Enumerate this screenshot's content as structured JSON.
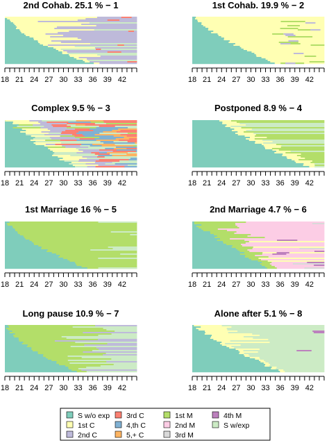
{
  "chart_data": {
    "type": "sequence-index-plot",
    "x_ticks": [
      "18",
      "21",
      "24",
      "27",
      "30",
      "33",
      "36",
      "39",
      "42"
    ],
    "x_range": [
      18,
      45
    ],
    "states": [
      {
        "label": "S w/o exp",
        "color": "#7fcdbb"
      },
      {
        "label": "1st C",
        "color": "#ffffb3"
      },
      {
        "label": "2nd C",
        "color": "#bebada"
      },
      {
        "label": "3rd C",
        "color": "#fb8072"
      },
      {
        "label": "4,th C",
        "color": "#80b1d3"
      },
      {
        "label": "5,+ C",
        "color": "#fdb462"
      },
      {
        "label": "1st M",
        "color": "#b3de69"
      },
      {
        "label": "2nd M",
        "color": "#fccde5"
      },
      {
        "label": "3rd M",
        "color": "#d9d9d9"
      },
      {
        "label": "4th M",
        "color": "#bc80bd"
      },
      {
        "label": "S w/exp",
        "color": "#ccebc5"
      }
    ],
    "panels": [
      {
        "title": "2nd Cohab. 25.1 % −  1",
        "cluster": 1,
        "share_pct": 25.1,
        "dominant_states": [
          "S w/o exp",
          "1st C",
          "2nd C"
        ]
      },
      {
        "title": "1st Cohab. 19.9 % −  2",
        "cluster": 2,
        "share_pct": 19.9,
        "dominant_states": [
          "S w/o exp",
          "1st C"
        ]
      },
      {
        "title": "Complex 9.5 % −  3",
        "cluster": 3,
        "share_pct": 9.5,
        "dominant_states": [
          "S w/o exp",
          "1st C",
          "2nd C",
          "3rd C",
          "4,th C",
          "5,+ C"
        ]
      },
      {
        "title": "Postponed 8.9 % −  4",
        "cluster": 4,
        "share_pct": 8.9,
        "dominant_states": [
          "S w/o exp",
          "1st C",
          "1st M"
        ]
      },
      {
        "title": "1st Marriage 16 % −  5",
        "cluster": 5,
        "share_pct": 16,
        "dominant_states": [
          "S w/o exp",
          "1st M"
        ]
      },
      {
        "title": "2nd Marriage 4.7 % −  6",
        "cluster": 6,
        "share_pct": 4.7,
        "dominant_states": [
          "S w/o exp",
          "1st M",
          "2nd M",
          "4th M"
        ]
      },
      {
        "title": "Long pause 10.9 % −  7",
        "cluster": 7,
        "share_pct": 10.9,
        "dominant_states": [
          "S w/o exp",
          "1st M",
          "S w/exp"
        ]
      },
      {
        "title": "Alone after 5.1 % −  8",
        "cluster": 8,
        "share_pct": 5.1,
        "dominant_states": [
          "S w/o exp",
          "1st C",
          "S w/exp"
        ]
      }
    ]
  }
}
